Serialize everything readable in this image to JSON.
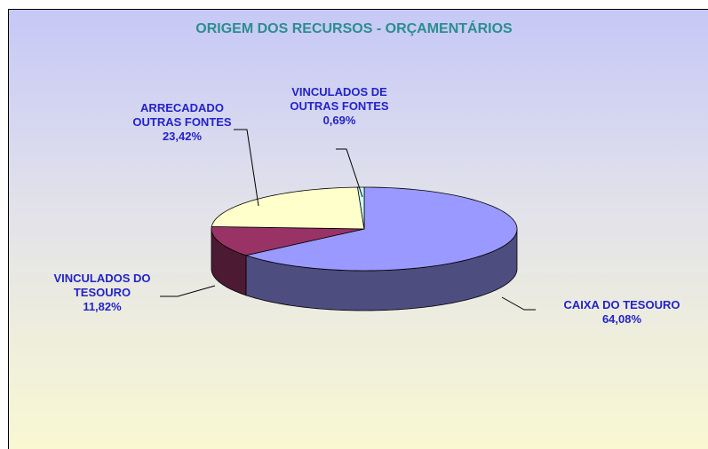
{
  "chart_data": {
    "type": "pie",
    "title": "ORIGEM DOS RECURSOS - ORÇAMENTÁRIOS",
    "categories": [
      "CAIXA DO TESOURO",
      "VINCULADOS DO TESOURO",
      "ARRECADADO OUTRAS FONTES",
      "VINCULADOS DE OUTRAS FONTES"
    ],
    "values": [
      64.08,
      11.82,
      23.42,
      0.69
    ],
    "value_labels": [
      "64,08%",
      "11,82%",
      "23,42%",
      "0,69%"
    ],
    "colors": [
      "#9999ff",
      "#993366",
      "#ffffcc",
      "#ccffff"
    ]
  }
}
